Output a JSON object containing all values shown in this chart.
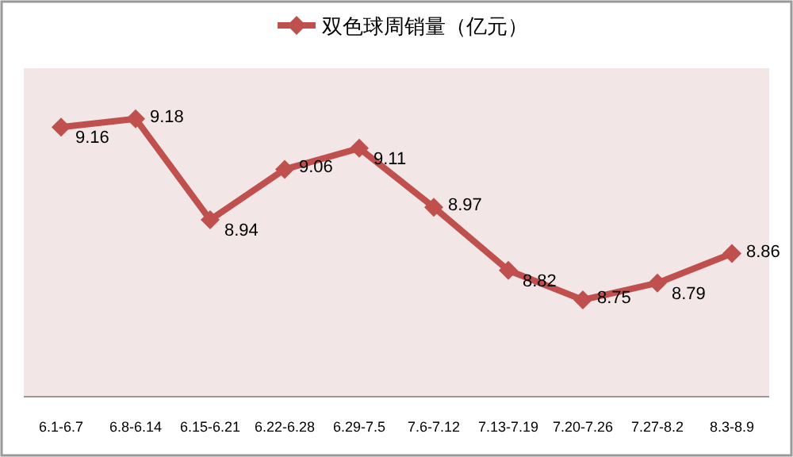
{
  "chart_data": {
    "type": "line",
    "categories": [
      "6.1-6.7",
      "6.8-6.14",
      "6.15-6.21",
      "6.22-6.28",
      "6.29-7.5",
      "7.6-7.12",
      "7.13-7.19",
      "7.20-7.26",
      "7.27-8.2",
      "8.3-8.9"
    ],
    "series": [
      {
        "name": "双色球周销量（亿元）",
        "color": "#c0504d",
        "values": [
          9.16,
          9.18,
          8.94,
          9.06,
          9.11,
          8.97,
          8.82,
          8.75,
          8.79,
          8.86
        ]
      }
    ],
    "ylim": [
      8.52,
      9.3
    ],
    "tick_labels": "x",
    "data_labels": true,
    "legend": "top",
    "marker": "diamond"
  }
}
